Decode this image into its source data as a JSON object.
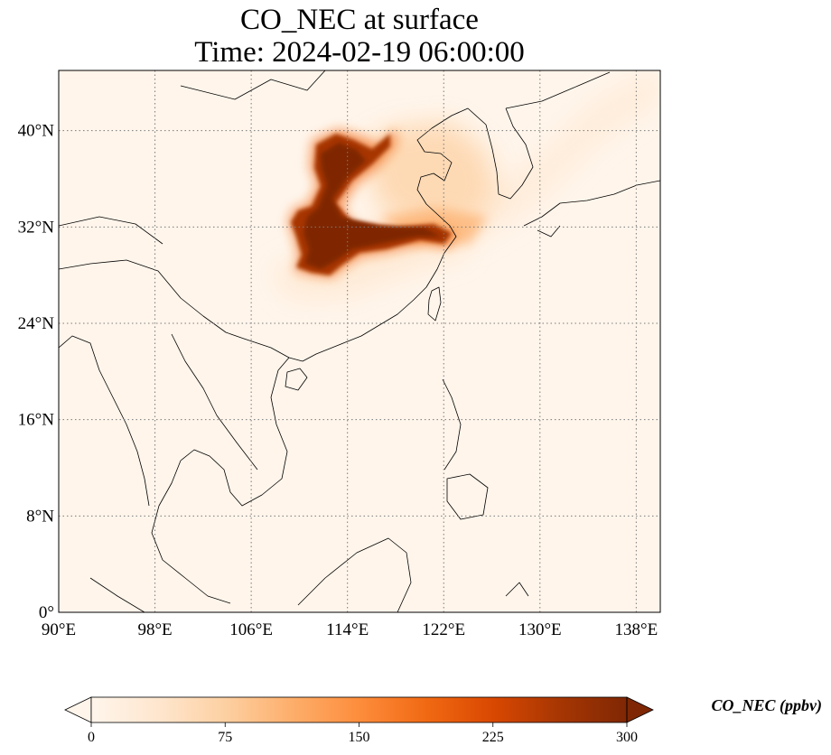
{
  "title": {
    "line1": "CO_NEC at surface",
    "line2": "Time: 2024-02-19 06:00:00"
  },
  "map": {
    "lon_range": [
      90,
      140
    ],
    "lat_range": [
      0,
      45
    ],
    "lon_ticks": [
      {
        "value": 90,
        "label": "90°E"
      },
      {
        "value": 98,
        "label": "98°E"
      },
      {
        "value": 106,
        "label": "106°E"
      },
      {
        "value": 114,
        "label": "114°E"
      },
      {
        "value": 122,
        "label": "122°E"
      },
      {
        "value": 130,
        "label": "130°E"
      },
      {
        "value": 138,
        "label": "138°E"
      }
    ],
    "lat_ticks": [
      {
        "value": 0,
        "label": "0°"
      },
      {
        "value": 8,
        "label": "8°N"
      },
      {
        "value": 16,
        "label": "16°N"
      },
      {
        "value": 24,
        "label": "24°N"
      },
      {
        "value": 32,
        "label": "32°N"
      },
      {
        "value": 40,
        "label": "40°N"
      }
    ],
    "gridlines": true,
    "gridline_color": "#7a7a7a",
    "background_color": "#fff5eb",
    "coastline_color": "#000000"
  },
  "colorbar": {
    "label": "CO_NEC (ppbv)",
    "min": 0,
    "max": 300,
    "extend": "both",
    "colormap": [
      "#fff5eb",
      "#fee6ce",
      "#fdd0a2",
      "#fdae6b",
      "#fd8d3c",
      "#f16913",
      "#d94801",
      "#a63603",
      "#7f2704"
    ],
    "ticks": [
      {
        "value": 0,
        "label": "0"
      },
      {
        "value": 75,
        "label": "75"
      },
      {
        "value": 150,
        "label": "150"
      },
      {
        "value": 225,
        "label": "225"
      },
      {
        "value": 300,
        "label": "300"
      }
    ]
  }
}
